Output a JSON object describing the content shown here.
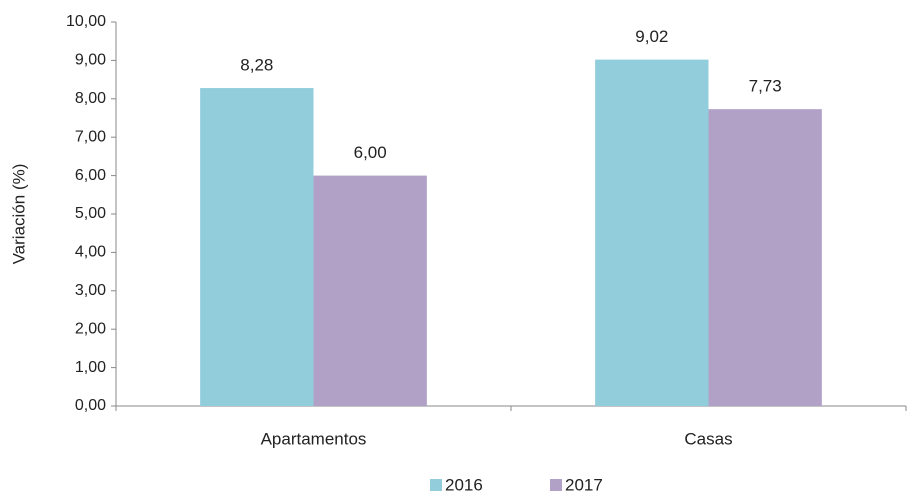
{
  "chart_data": {
    "type": "bar",
    "y_label": "Variación (%)",
    "categories": [
      "Apartamentos",
      "Casas"
    ],
    "series": [
      {
        "name": "2016",
        "color": "#92cddc",
        "values": [
          8.28,
          9.02
        ],
        "value_labels": [
          "8,28",
          "9,02"
        ]
      },
      {
        "name": "2017",
        "color": "#b2a1c7",
        "values": [
          6.0,
          7.73
        ],
        "value_labels": [
          "6,00",
          "7,73"
        ]
      }
    ],
    "ylim": [
      0,
      10
    ],
    "yticks": [
      {
        "value": 0,
        "label": "0,00"
      },
      {
        "value": 1,
        "label": "1,00"
      },
      {
        "value": 2,
        "label": "2,00"
      },
      {
        "value": 3,
        "label": "3,00"
      },
      {
        "value": 4,
        "label": "4,00"
      },
      {
        "value": 5,
        "label": "5,00"
      },
      {
        "value": 6,
        "label": "6,00"
      },
      {
        "value": 7,
        "label": "7,00"
      },
      {
        "value": 8,
        "label": "8,00"
      },
      {
        "value": 9,
        "label": "9,00"
      },
      {
        "value": 10,
        "label": "10,00"
      }
    ],
    "grid": false,
    "legend": "bottom"
  }
}
